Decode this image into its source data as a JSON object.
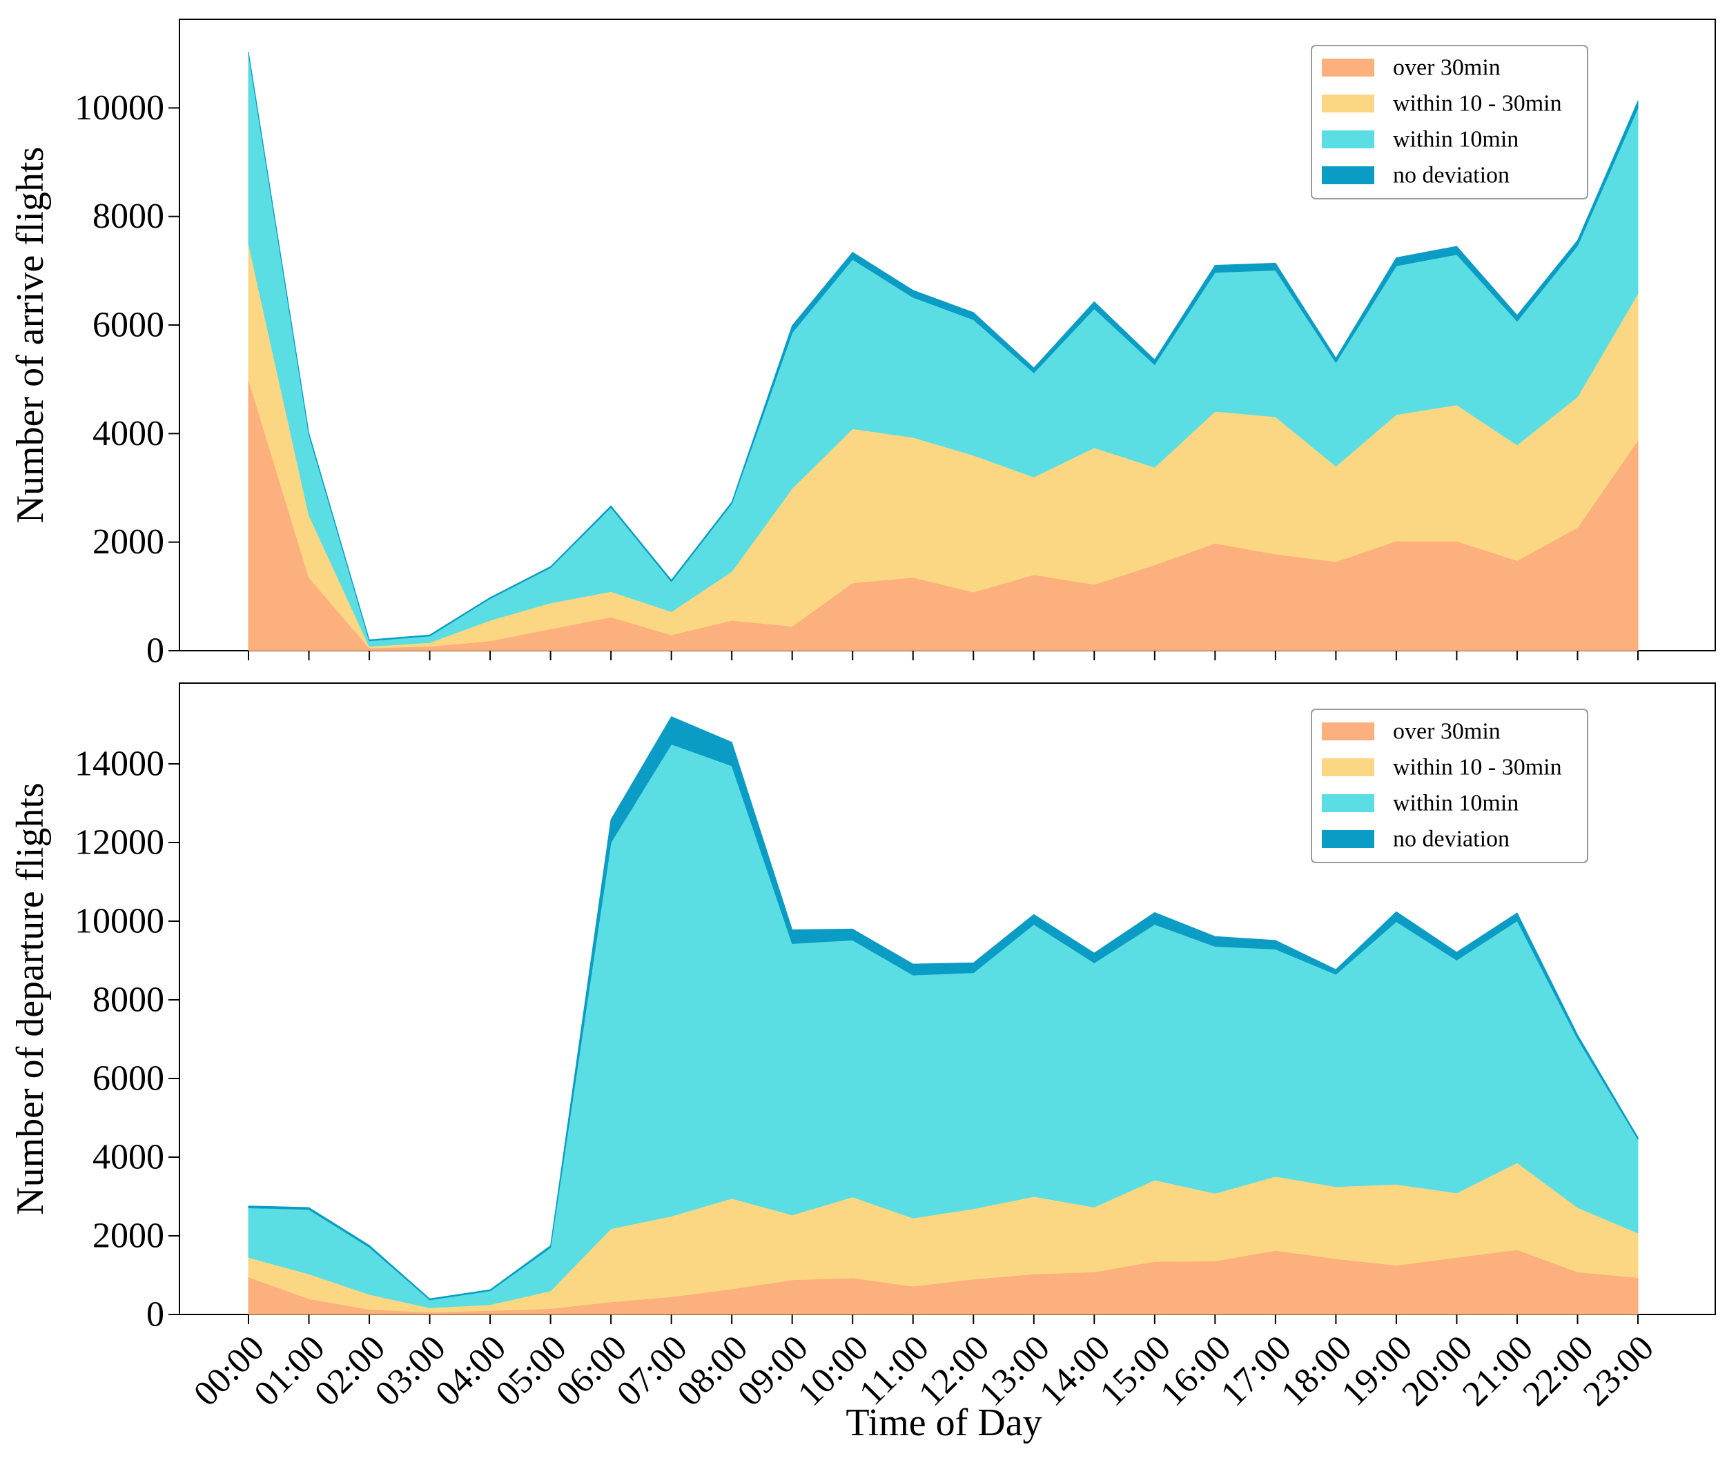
{
  "colors": {
    "over30": "#FBB07E",
    "within10_30": "#FCD783",
    "within10": "#5BDEE3",
    "noDeviation": "#0A9CC5"
  },
  "chart_data": [
    {
      "type": "area",
      "stacked": true,
      "ylabel": "Number of arrive flights",
      "xlabel": "",
      "ylim": [
        0,
        11500
      ],
      "yticks": [
        0,
        2000,
        4000,
        6000,
        8000,
        10000
      ],
      "tick_labels": [
        "0",
        "2000",
        "4000",
        "6000",
        "8000",
        "10000"
      ],
      "legend_position": "top-right",
      "categories": [
        "00:00",
        "01:00",
        "02:00",
        "03:00",
        "04:00",
        "05:00",
        "06:00",
        "07:00",
        "08:00",
        "09:00",
        "10:00",
        "11:00",
        "12:00",
        "13:00",
        "14:00",
        "15:00",
        "16:00",
        "17:00",
        "18:00",
        "19:00",
        "20:00",
        "21:00",
        "22:00",
        "23:00"
      ],
      "series": [
        {
          "name": "over 30min",
          "color_key": "over30",
          "values": [
            5000,
            1350,
            50,
            80,
            180,
            400,
            620,
            290,
            560,
            450,
            1250,
            1350,
            1080,
            1400,
            1220,
            1580,
            1980,
            1780,
            1640,
            2020,
            2020,
            1660,
            2270,
            3880
          ]
        },
        {
          "name": "within 10 - 30min",
          "color_key": "within10_30",
          "values": [
            2500,
            1150,
            30,
            70,
            380,
            480,
            470,
            430,
            900,
            2540,
            2840,
            2580,
            2520,
            1800,
            2520,
            1800,
            2430,
            2530,
            1760,
            2330,
            2510,
            2130,
            2410,
            2700
          ]
        },
        {
          "name": "within 10min",
          "color_key": "within10",
          "values": [
            3500,
            1480,
            100,
            120,
            400,
            650,
            1550,
            550,
            1250,
            2870,
            3120,
            2580,
            2500,
            1920,
            2560,
            1890,
            2560,
            2700,
            1910,
            2740,
            2770,
            2280,
            2780,
            3420
          ]
        },
        {
          "name": "no deviation",
          "color_key": "noDeviation",
          "values": [
            30,
            30,
            20,
            20,
            20,
            20,
            30,
            30,
            30,
            130,
            130,
            130,
            130,
            90,
            130,
            90,
            130,
            130,
            80,
            150,
            150,
            110,
            100,
            130
          ]
        }
      ],
      "legend": [
        "over 30min",
        "within 10 - 30min",
        "within 10min",
        "no deviation"
      ]
    },
    {
      "type": "area",
      "stacked": true,
      "ylabel": "Number of departure flights",
      "xlabel": "Time of Day",
      "ylim": [
        0,
        16000
      ],
      "yticks": [
        0,
        2000,
        4000,
        6000,
        8000,
        10000,
        12000,
        14000
      ],
      "tick_labels": [
        "0",
        "2000",
        "4000",
        "6000",
        "8000",
        "10000",
        "12000",
        "14000"
      ],
      "legend_position": "top-right",
      "categories": [
        "00:00",
        "01:00",
        "02:00",
        "03:00",
        "04:00",
        "05:00",
        "06:00",
        "07:00",
        "08:00",
        "09:00",
        "10:00",
        "11:00",
        "12:00",
        "13:00",
        "14:00",
        "15:00",
        "16:00",
        "17:00",
        "18:00",
        "19:00",
        "20:00",
        "21:00",
        "22:00",
        "23:00"
      ],
      "series": [
        {
          "name": "over 30min",
          "color_key": "over30",
          "values": [
            950,
            400,
            130,
            60,
            100,
            150,
            320,
            450,
            650,
            880,
            930,
            720,
            900,
            1030,
            1080,
            1350,
            1360,
            1630,
            1420,
            1250,
            1450,
            1650,
            1080,
            940
          ]
        },
        {
          "name": "within 10 - 30min",
          "color_key": "within10_30",
          "values": [
            500,
            630,
            380,
            110,
            150,
            450,
            1860,
            2050,
            2300,
            1650,
            2060,
            1730,
            1790,
            1970,
            1650,
            2070,
            1720,
            1880,
            1830,
            2060,
            1640,
            2210,
            1640,
            1130
          ]
        },
        {
          "name": "within 10min",
          "color_key": "within10",
          "values": [
            1260,
            1640,
            1200,
            200,
            350,
            1100,
            9820,
            12000,
            11000,
            6900,
            6530,
            6180,
            6000,
            6920,
            6210,
            6500,
            6280,
            5780,
            5400,
            6680,
            5920,
            6150,
            4290,
            2380
          ]
        },
        {
          "name": "no deviation",
          "color_key": "noDeviation",
          "values": [
            50,
            50,
            50,
            30,
            30,
            50,
            580,
            700,
            600,
            350,
            280,
            280,
            250,
            250,
            250,
            300,
            250,
            220,
            120,
            250,
            200,
            200,
            100,
            50
          ]
        }
      ],
      "legend": [
        "over 30min",
        "within 10 - 30min",
        "within 10min",
        "no deviation"
      ]
    }
  ]
}
